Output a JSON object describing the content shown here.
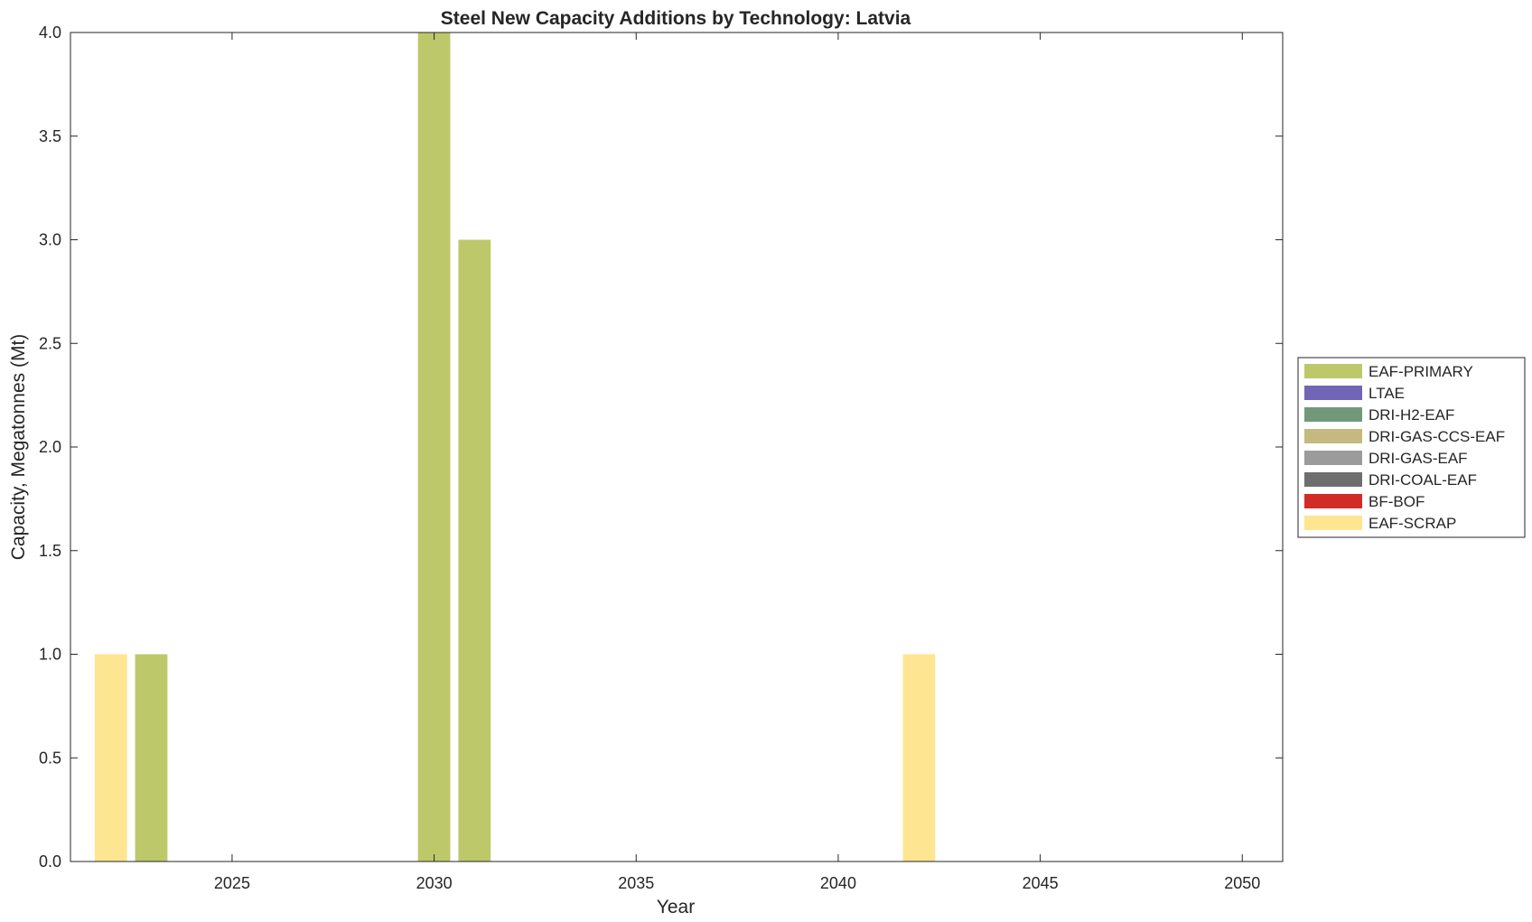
{
  "chart_data": {
    "type": "bar",
    "title": "Steel New Capacity Additions by Technology: Latvia",
    "xlabel": "Year",
    "ylabel": "Capacity, Megatonnes (Mt)",
    "xlim": [
      2021,
      2051
    ],
    "ylim": [
      0,
      4
    ],
    "xticks": [
      2025,
      2030,
      2035,
      2040,
      2045,
      2050
    ],
    "xtick_labels": [
      "2025",
      "2030",
      "2035",
      "2040",
      "2045",
      "2050"
    ],
    "yticks": [
      0,
      0.5,
      1,
      1.5,
      2,
      2.5,
      3,
      3.5,
      4
    ],
    "ytick_labels": [
      "0.0",
      "0.5",
      "1.0",
      "1.5",
      "2.0",
      "2.5",
      "3.0",
      "3.5",
      "4.0"
    ],
    "bar_width_years": 0.8,
    "grid": false,
    "legend_position": "right",
    "series": [
      {
        "name": "EAF-PRIMARY",
        "color": "#bdc86a",
        "x": [
          2023,
          2030,
          2031
        ],
        "values": [
          1,
          4,
          3
        ]
      },
      {
        "name": "LTAE",
        "color": "#7165b6",
        "x": [],
        "values": []
      },
      {
        "name": "DRI-H2-EAF",
        "color": "#72987a",
        "x": [],
        "values": []
      },
      {
        "name": "DRI-GAS-CCS-EAF",
        "color": "#c4ba80",
        "x": [],
        "values": []
      },
      {
        "name": "DRI-GAS-EAF",
        "color": "#9b9b9b",
        "x": [],
        "values": []
      },
      {
        "name": "DRI-COAL-EAF",
        "color": "#6e6e6e",
        "x": [],
        "values": []
      },
      {
        "name": "BF-BOF",
        "color": "#d22b26",
        "x": [],
        "values": []
      },
      {
        "name": "EAF-SCRAP",
        "color": "#fee592",
        "x": [
          2022,
          2042
        ],
        "values": [
          1,
          1
        ]
      }
    ]
  }
}
